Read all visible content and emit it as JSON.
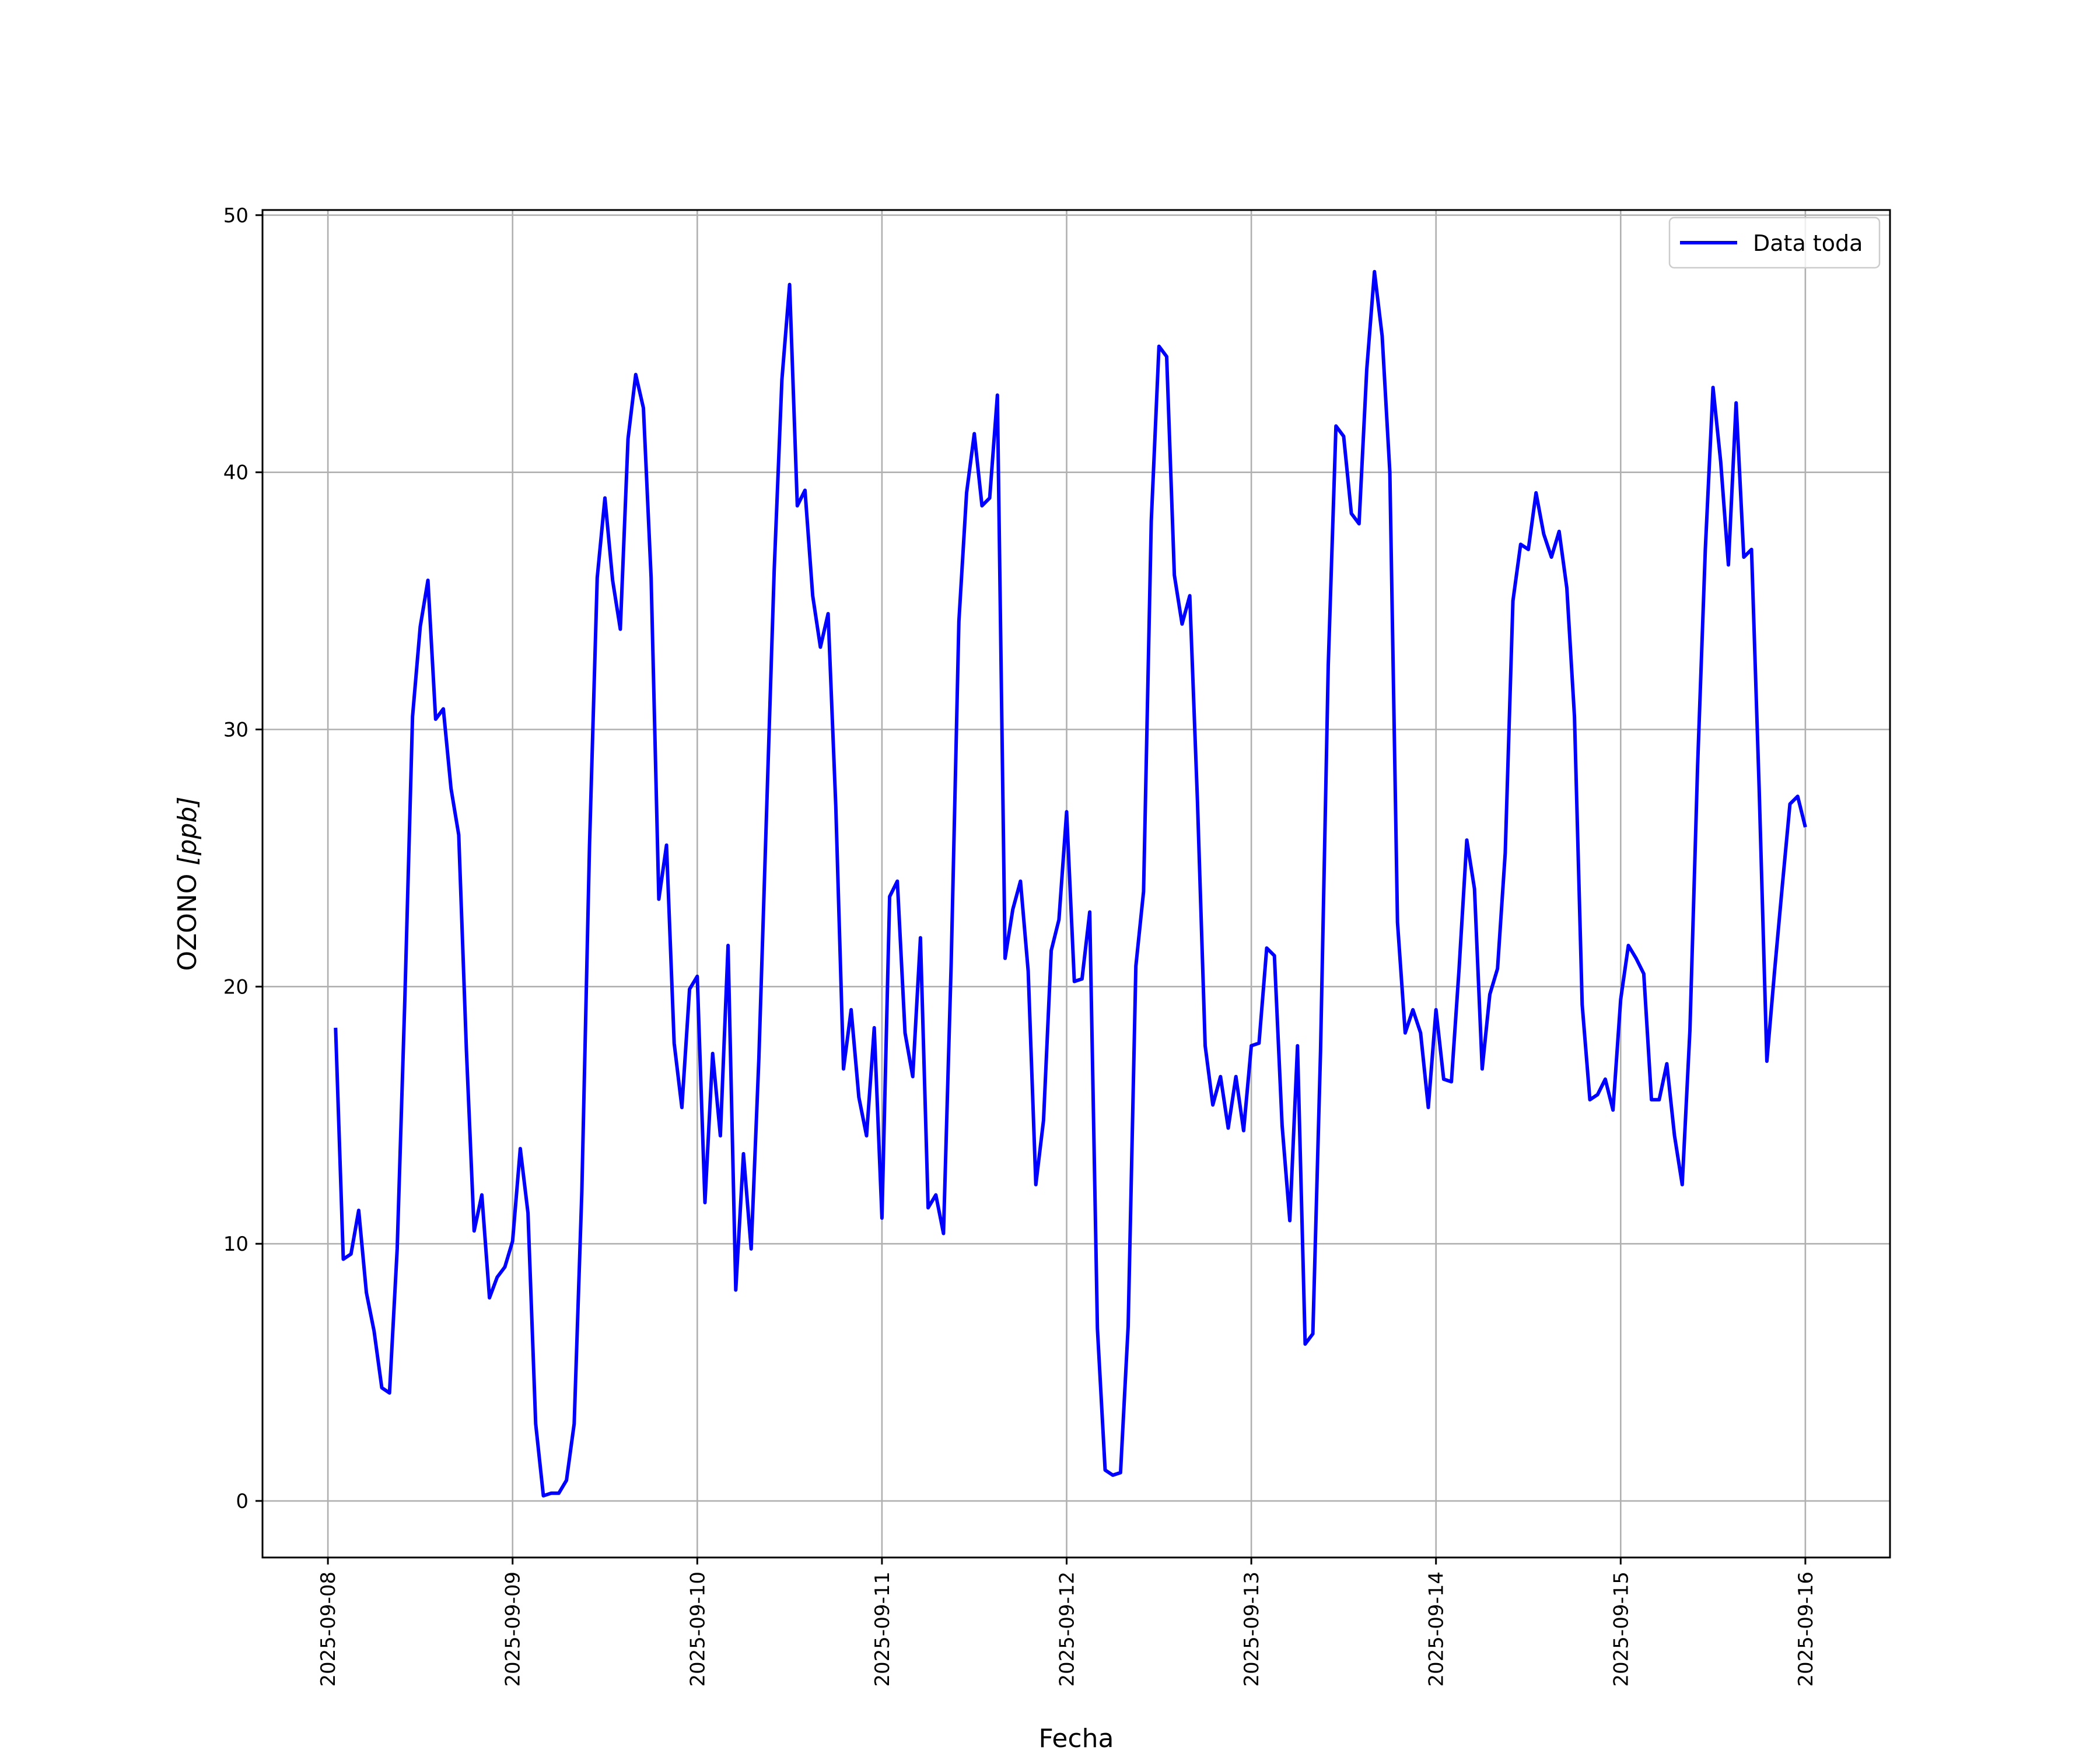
{
  "chart_data": {
    "type": "line",
    "xlabel": "Fecha",
    "ylabel_main": "OZONO ",
    "ylabel_unit": "[ppb]",
    "ylim": [
      -2.2,
      50.2
    ],
    "xlim": [
      "2025-09-07T15:30",
      "2025-09-16T11:00"
    ],
    "yticks": [
      0,
      10,
      20,
      30,
      40,
      50
    ],
    "xticks": [
      "2025-09-08",
      "2025-09-09",
      "2025-09-10",
      "2025-09-11",
      "2025-09-12",
      "2025-09-13",
      "2025-09-14",
      "2025-09-15",
      "2025-09-16"
    ],
    "grid": true,
    "legend_position": "upper right",
    "x_label_rotation": "vertical",
    "series": [
      {
        "name": "Data toda",
        "color": "#0000ff",
        "start": "2025-09-08T01:00",
        "interval_hours": 1,
        "values": [
          18.4,
          9.4,
          9.6,
          11.3,
          8.1,
          6.6,
          4.4,
          4.2,
          9.8,
          19.5,
          30.5,
          34.0,
          35.8,
          30.4,
          30.8,
          27.7,
          25.9,
          17.5,
          10.5,
          11.9,
          7.9,
          8.7,
          9.1,
          10.1,
          13.7,
          11.2,
          3.0,
          0.2,
          0.3,
          0.3,
          0.8,
          3.0,
          12.0,
          25.5,
          35.9,
          39.0,
          35.8,
          33.9,
          41.3,
          43.8,
          42.5,
          35.9,
          23.4,
          25.5,
          17.8,
          15.3,
          19.9,
          20.4,
          11.6,
          17.4,
          14.2,
          21.6,
          8.2,
          13.5,
          9.8,
          17.2,
          26.7,
          36.2,
          43.6,
          47.3,
          38.7,
          39.3,
          35.2,
          33.2,
          34.5,
          27.0,
          16.8,
          19.1,
          15.7,
          14.2,
          18.4,
          11.0,
          23.5,
          24.1,
          18.2,
          16.5,
          21.9,
          11.4,
          11.9,
          10.4,
          20.9,
          34.2,
          39.2,
          41.5,
          38.7,
          39.0,
          43.0,
          21.1,
          23.0,
          24.1,
          20.6,
          12.3,
          14.8,
          21.4,
          22.6,
          26.8,
          20.2,
          20.3,
          22.9,
          6.7,
          1.2,
          1.0,
          1.1,
          6.8,
          20.8,
          23.7,
          38.1,
          44.9,
          44.5,
          36.0,
          34.1,
          35.2,
          27.2,
          17.7,
          15.4,
          16.5,
          14.5,
          16.5,
          14.4,
          17.7,
          17.8,
          21.5,
          21.2,
          14.6,
          10.9,
          17.7,
          6.1,
          6.5,
          17.5,
          32.5,
          41.8,
          41.4,
          38.4,
          38.0,
          44.0,
          47.8,
          45.3,
          40.0,
          22.5,
          18.2,
          19.1,
          18.2,
          15.3,
          19.1,
          16.4,
          16.3,
          20.7,
          25.7,
          23.8,
          16.8,
          19.7,
          20.7,
          25.2,
          35.0,
          37.2,
          37.0,
          39.2,
          37.6,
          36.7,
          37.7,
          35.5,
          30.5,
          19.3,
          15.6,
          15.8,
          16.4,
          15.2,
          19.5,
          21.6,
          21.1,
          20.5,
          15.6,
          15.6,
          17.0,
          14.2,
          12.3,
          18.3,
          28.6,
          37.0,
          43.3,
          40.4,
          36.4,
          42.7,
          36.7,
          37.0,
          27.7,
          17.1,
          20.6,
          23.9,
          27.1,
          27.4,
          26.2
        ]
      }
    ]
  }
}
